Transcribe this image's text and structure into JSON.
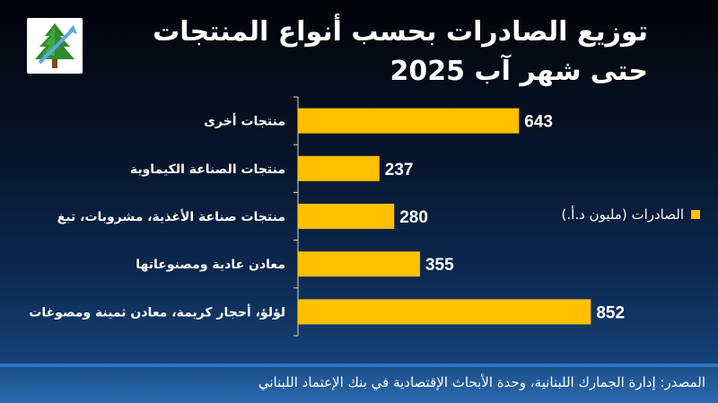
{
  "title": "توزيع الصادرات بحسب أنواع المنتجات حتى شهر آب 2025",
  "source": "المصدر: إدارة الجمارك اللبنانية، وحدة الأبحاث الإقتصادية في بنك الإعتماد اللبناني",
  "colors": {
    "bar": "#FFC000",
    "axis": "#d9d9d9"
  },
  "chart_data": {
    "type": "bar",
    "orientation": "horizontal",
    "title": "توزيع الصادرات بحسب أنواع المنتجات حتى شهر آب 2025",
    "categories": [
      "منتجات أخرى",
      "منتجات الصناعة الكيماوية",
      "منتجات صناعة الأغذية، مشروبات، تبغ",
      "معادن عادية ومصنوعاتها",
      "لؤلؤ، أحجار كريمة، معادن ثمينة ومصوغات"
    ],
    "series": [
      {
        "name": "الصادرات (مليون د.أ.)",
        "values": [
          643,
          237,
          280,
          355,
          852
        ]
      }
    ],
    "xlim": [
      0,
      1000
    ],
    "grid": false,
    "legend_position": "right"
  }
}
